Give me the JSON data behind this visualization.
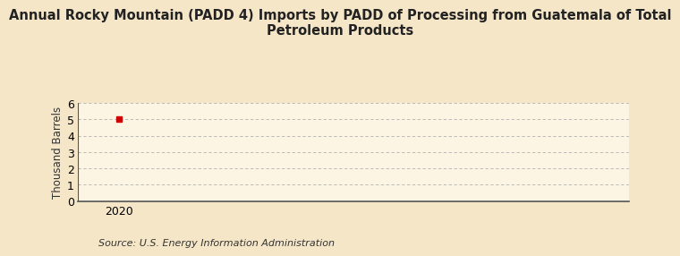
{
  "title": "Annual Rocky Mountain (PADD 4) Imports by PADD of Processing from Guatemala of Total\nPetroleum Products",
  "ylabel": "Thousand Barrels",
  "source": "Source: U.S. Energy Information Administration",
  "background_color": "#f5e6c8",
  "plot_bg_color": "#fdf5e4",
  "data_x": [
    2020
  ],
  "data_y": [
    5
  ],
  "data_color": "#cc0000",
  "xlim": [
    2019.6,
    2025.0
  ],
  "ylim": [
    0,
    6
  ],
  "yticks": [
    0,
    1,
    2,
    3,
    4,
    5,
    6
  ],
  "xticks": [
    2020
  ],
  "grid_color": "#aaaaaa",
  "spine_color": "#555555",
  "title_fontsize": 10.5,
  "label_fontsize": 8.5,
  "tick_fontsize": 9,
  "source_fontsize": 8
}
